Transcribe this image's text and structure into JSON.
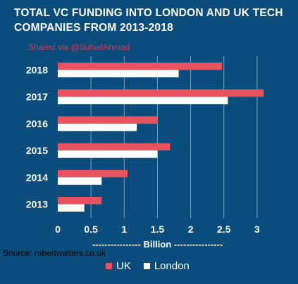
{
  "header": {
    "title": "TOTAL VC FUNDING INTO LONDON AND UK TECH COMPANIES FROM 2013-2018",
    "shared_text": "Shared via @SuhailAhmad",
    "source_text": "Source: robertwalters.co.uk"
  },
  "colors": {
    "background": "#0a4d7c",
    "uk": "#e8535f",
    "london": "#ffffff",
    "grid": "#7f9fbb"
  },
  "chart_data": {
    "type": "bar",
    "orientation": "horizontal",
    "categories": [
      "2018",
      "2017",
      "2016",
      "2015",
      "2014",
      "2013"
    ],
    "series": [
      {
        "name": "UK",
        "values": [
          2.47,
          3.1,
          1.5,
          1.69,
          1.05,
          0.66
        ]
      },
      {
        "name": "London",
        "values": [
          1.82,
          2.56,
          1.19,
          1.5,
          0.66,
          0.4
        ]
      }
    ],
    "xlabel": "---------------- Billion ----------------",
    "xticks": [
      "0",
      "0.5",
      "1",
      "1.5",
      "2",
      "2.5",
      "3"
    ],
    "xlim": [
      0,
      3.3
    ],
    "grid": true,
    "legend_position": "bottom"
  }
}
